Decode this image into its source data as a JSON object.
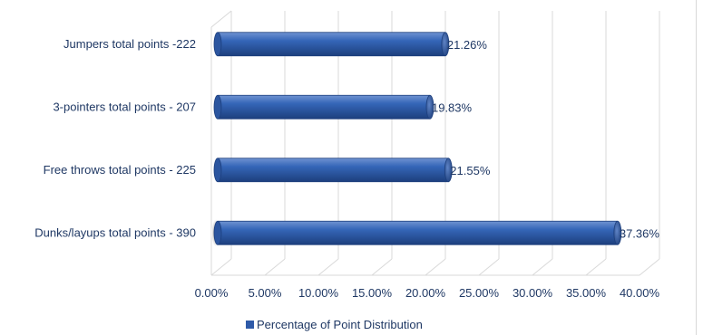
{
  "chart_data": {
    "type": "bar",
    "orientation": "horizontal",
    "style": "3d-cylinder",
    "categories": [
      "Jumpers total points -222",
      "3-pointers total points - 207",
      "Free throws total points - 225",
      "Dunks/layups total points - 390"
    ],
    "series": [
      {
        "name": "Percentage of Point Distribution",
        "values": [
          21.26,
          19.83,
          21.55,
          37.36
        ],
        "labels": [
          "21.26%",
          "19.83%",
          "21.55%",
          "37.36%"
        ]
      }
    ],
    "xlim": [
      0,
      40
    ],
    "xticks": [
      "0.00%",
      "5.00%",
      "10.00%",
      "15.00%",
      "20.00%",
      "25.00%",
      "30.00%",
      "35.00%",
      "40.00%"
    ],
    "grid": true,
    "legend_position": "bottom",
    "bar_color": "#2e5aa8"
  }
}
